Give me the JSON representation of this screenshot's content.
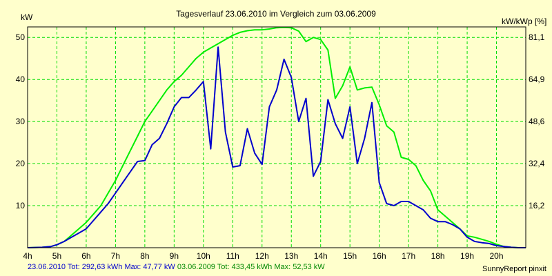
{
  "chart_data": {
    "type": "line",
    "title": "Tagesverlauf 23.06.2010 im Vergleich zum 03.06.2009",
    "y_left_label": "kW",
    "y_right_label": "kW/kWp [%]",
    "x_ticks": [
      "4h",
      "5h",
      "6h",
      "7h",
      "8h",
      "9h",
      "10h",
      "11h",
      "12h",
      "13h",
      "14h",
      "15h",
      "16h",
      "17h",
      "18h",
      "19h",
      "20h"
    ],
    "y_left_ticks": [
      "10",
      "20",
      "30",
      "40",
      "50"
    ],
    "y_right_ticks": [
      "16,2",
      "32,4",
      "48,6",
      "64,9",
      "81,1"
    ],
    "xlim": [
      4,
      21
    ],
    "ylim": [
      0,
      52.5
    ],
    "grid": true,
    "series": [
      {
        "name": "23.06.2010",
        "color": "#0000cc",
        "x": [
          4,
          4.5,
          4.8,
          5,
          5.25,
          5.5,
          5.75,
          6,
          6.25,
          6.5,
          6.75,
          7,
          7.25,
          7.5,
          7.75,
          8,
          8.25,
          8.5,
          8.75,
          9,
          9.25,
          9.5,
          9.75,
          10,
          10.25,
          10.5,
          10.75,
          11,
          11.25,
          11.5,
          11.75,
          12,
          12.25,
          12.5,
          12.75,
          13,
          13.25,
          13.5,
          13.75,
          14,
          14.25,
          14.5,
          14.75,
          15,
          15.25,
          15.5,
          15.75,
          16,
          16.25,
          16.5,
          16.75,
          17,
          17.25,
          17.5,
          17.75,
          18,
          18.25,
          18.5,
          18.75,
          19,
          19.25,
          19.5,
          19.75,
          20,
          20.25,
          20.5,
          20.75,
          21
        ],
        "y": [
          0,
          0.1,
          0.3,
          0.7,
          1.5,
          2.5,
          3.5,
          4.5,
          6.5,
          8.5,
          10.5,
          13,
          15.5,
          18,
          20.5,
          20.7,
          24.5,
          26,
          29.5,
          33.5,
          35.7,
          35.7,
          37.5,
          39.5,
          23.5,
          47.7,
          27.5,
          19.2,
          19.5,
          28.3,
          22.5,
          19.8,
          33.5,
          37.5,
          44.8,
          40.5,
          30,
          35.5,
          17,
          20.5,
          35.2,
          29.5,
          26,
          33.5,
          20,
          26,
          34.5,
          15.5,
          10.5,
          10,
          11,
          11,
          10,
          9,
          7,
          6.2,
          6.2,
          5.5,
          4.5,
          2.5,
          1.5,
          1.2,
          1,
          0.5,
          0.3,
          0.1,
          0,
          0
        ]
      },
      {
        "name": "03.06.2009",
        "color": "#00ee00",
        "x": [
          4,
          4.5,
          4.8,
          5,
          5.25,
          5.5,
          5.75,
          6,
          6.25,
          6.5,
          6.75,
          7,
          7.25,
          7.5,
          7.75,
          8,
          8.25,
          8.5,
          8.75,
          9,
          9.25,
          9.5,
          9.75,
          10,
          10.25,
          10.5,
          10.75,
          11,
          11.25,
          11.5,
          11.75,
          12,
          12.25,
          12.5,
          12.75,
          13,
          13.25,
          13.5,
          13.75,
          14,
          14.25,
          14.5,
          14.75,
          15,
          15.25,
          15.5,
          15.75,
          16,
          16.25,
          16.5,
          16.75,
          17,
          17.25,
          17.5,
          17.75,
          18,
          18.25,
          18.5,
          18.75,
          19,
          19.25,
          19.5,
          19.75,
          20,
          20.25,
          20.5,
          20.75,
          21
        ],
        "y": [
          0,
          0.1,
          0.3,
          0.7,
          1.5,
          3,
          4.5,
          6,
          8,
          10,
          13,
          16,
          19.5,
          23,
          26.5,
          30,
          32.5,
          35,
          37.5,
          39.5,
          41,
          43,
          45,
          46.5,
          47.5,
          48.5,
          49.5,
          50.5,
          51.2,
          51.6,
          51.8,
          51.8,
          52,
          52.3,
          52.4,
          52.3,
          51.5,
          49,
          50,
          49.5,
          47,
          35.5,
          38.5,
          43,
          37.5,
          38,
          38.2,
          34,
          29,
          27.5,
          21.5,
          21,
          19.5,
          16,
          13.5,
          9,
          7.5,
          6,
          4.5,
          2.8,
          2.5,
          2,
          1.5,
          0.8,
          0.3,
          0.1,
          0,
          0
        ]
      }
    ]
  },
  "footer": {
    "series1_label": "23.06.2010 Tot: 292,63 kWh Max: 47,77 kW",
    "series1_color": "#0000cc",
    "series2_label": "03.06.2009 Tot: 433,45 kWh Max: 52,53 kW",
    "series2_color": "#008800",
    "source": "SunnyReport pinxit"
  }
}
